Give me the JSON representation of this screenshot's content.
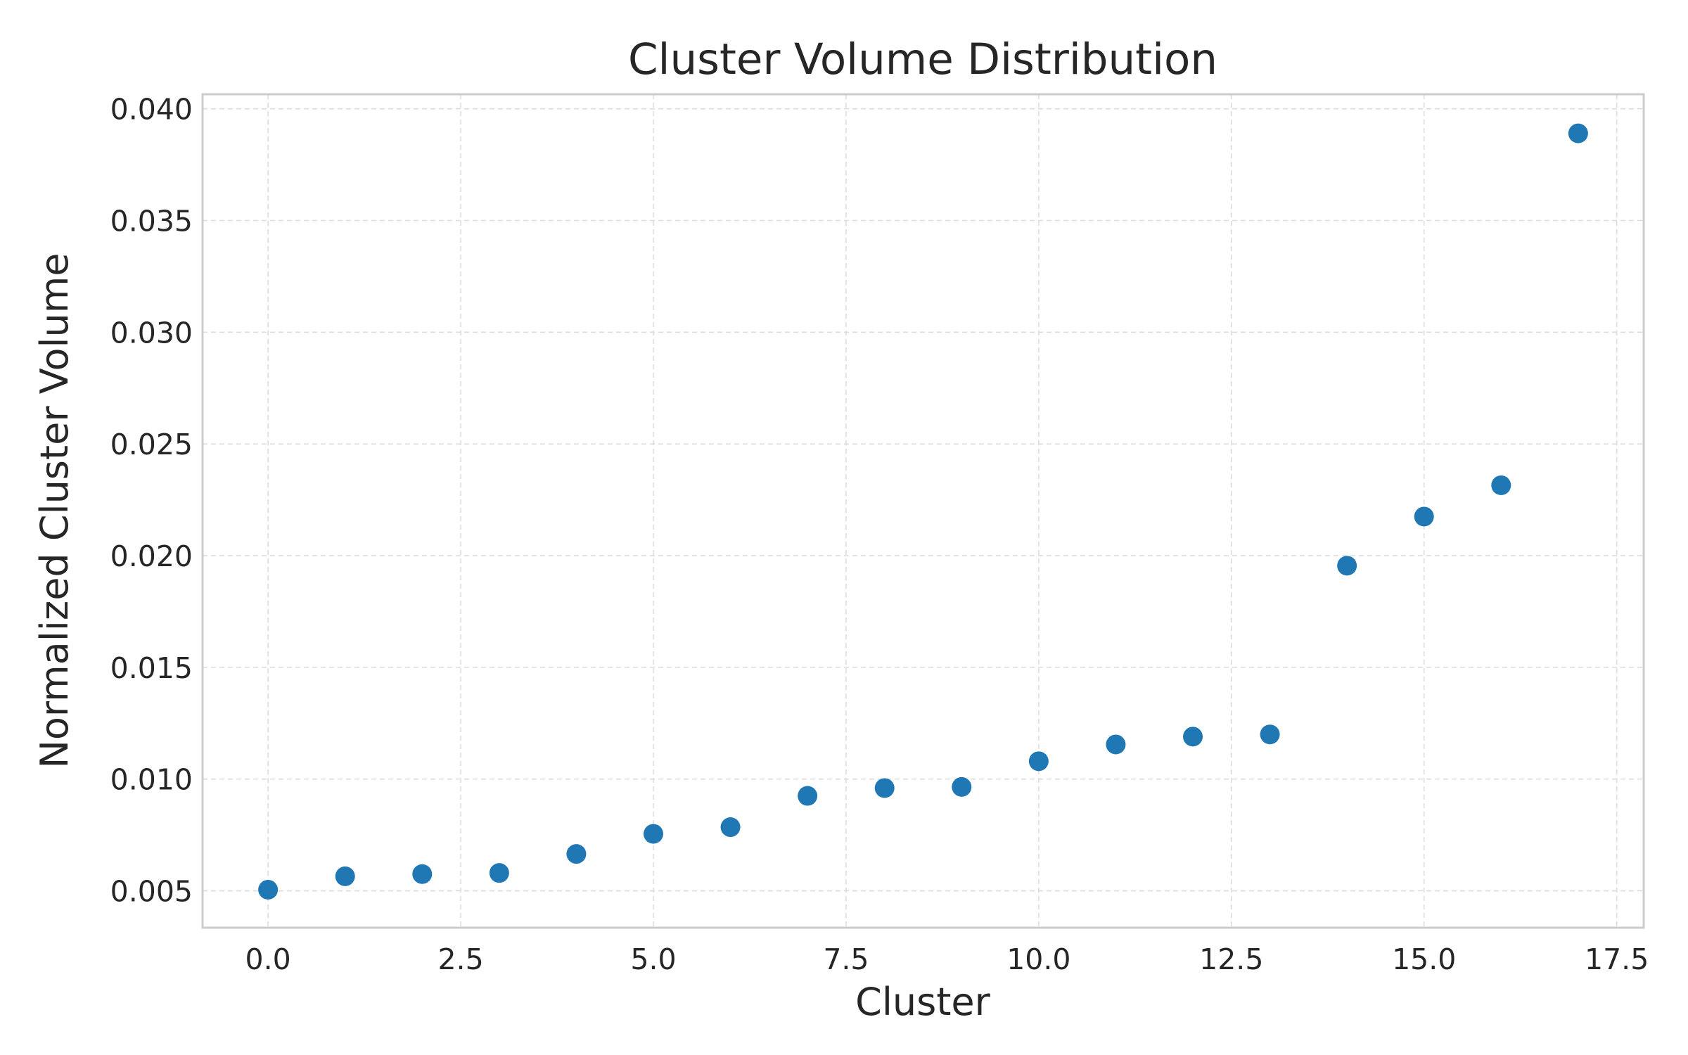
{
  "chart_data": {
    "type": "scatter",
    "title": "Cluster Volume Distribution",
    "xlabel": "Cluster",
    "ylabel": "Normalized Cluster Volume",
    "xlim": [
      -0.85,
      17.85
    ],
    "ylim": [
      0.00335,
      0.04065
    ],
    "x_ticks": [
      0.0,
      2.5,
      5.0,
      7.5,
      10.0,
      12.5,
      15.0,
      17.5
    ],
    "x_tick_labels": [
      "0.0",
      "2.5",
      "5.0",
      "7.5",
      "10.0",
      "12.5",
      "15.0",
      "17.5"
    ],
    "y_ticks": [
      0.005,
      0.01,
      0.015,
      0.02,
      0.025,
      0.03,
      0.035,
      0.04
    ],
    "y_tick_labels": [
      "0.005",
      "0.010",
      "0.015",
      "0.020",
      "0.025",
      "0.030",
      "0.035",
      "0.040"
    ],
    "grid": true,
    "color": "#1f77b4",
    "series": [
      {
        "x": [
          0,
          1,
          2,
          3,
          4,
          5,
          6,
          7,
          8,
          9,
          10,
          11,
          12,
          13,
          14,
          15,
          16,
          17
        ],
        "y": [
          0.00505,
          0.00565,
          0.00575,
          0.0058,
          0.00665,
          0.00755,
          0.00785,
          0.00925,
          0.0096,
          0.00965,
          0.0108,
          0.01155,
          0.0119,
          0.012,
          0.01955,
          0.02175,
          0.02315,
          0.0389
        ]
      }
    ]
  }
}
